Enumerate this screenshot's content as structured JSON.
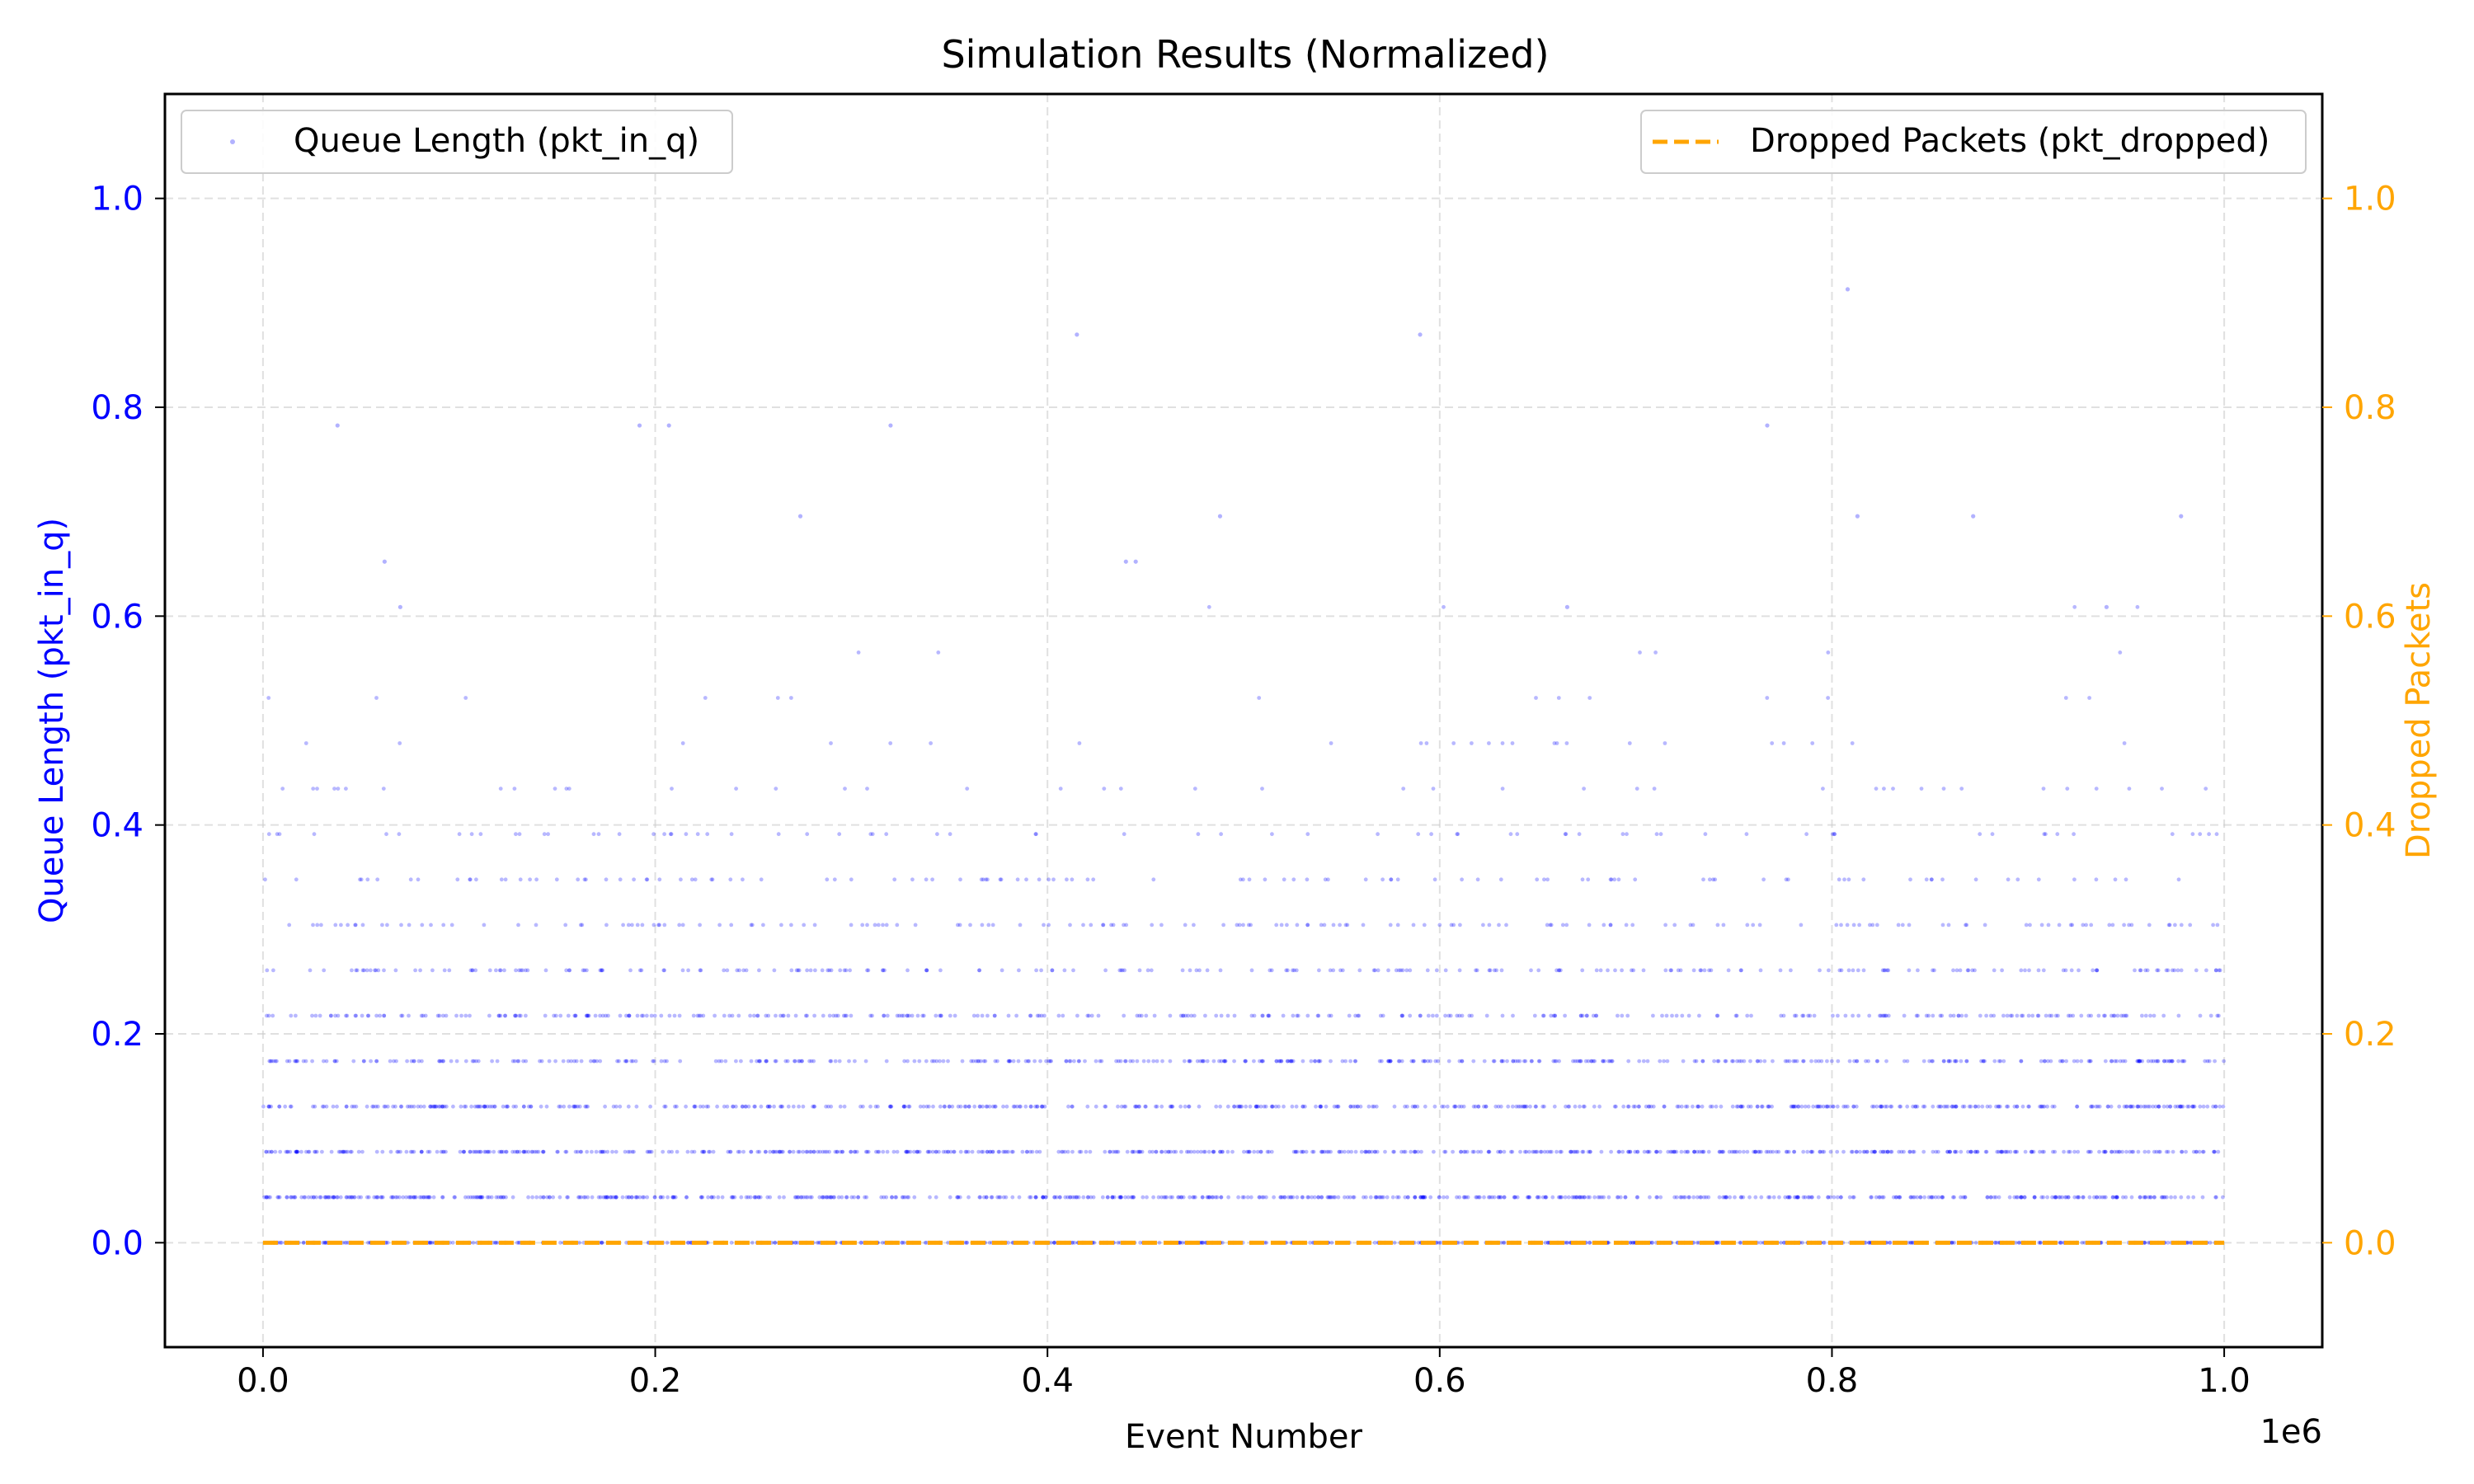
{
  "chart_data": {
    "type": "scatter",
    "title": "Simulation Results (Normalized)",
    "xlabel": "Event Number",
    "x_offset_label": "1e6",
    "x_scale": 1000000,
    "xlim": [
      -50000,
      1050000
    ],
    "x_ticks": [
      0,
      200000,
      400000,
      600000,
      800000,
      1000000
    ],
    "x_tick_labels": [
      "0.0",
      "0.2",
      "0.4",
      "0.6",
      "0.8",
      "1.0"
    ],
    "ylabel_left": "Queue Length (pkt_in_q)",
    "ylabel_right": "Dropped Packets",
    "ylim": [
      -0.1,
      1.1
    ],
    "y_ticks": [
      0.0,
      0.2,
      0.4,
      0.6,
      0.8,
      1.0
    ],
    "y_tick_labels": [
      "0.0",
      "0.2",
      "0.4",
      "0.6",
      "0.8",
      "1.0"
    ],
    "grid": true,
    "colors": {
      "queue": "#0000ff",
      "dropped": "#ffa500",
      "left_axis": "#0000ff",
      "right_axis": "#ffa500",
      "grid": "#cccccc"
    },
    "legend": [
      {
        "label": "Queue Length (pkt_in_q)",
        "placement": "upper left"
      },
      {
        "label": "Dropped Packets (pkt_dropped)",
        "placement": "upper right"
      }
    ],
    "series": [
      {
        "name": "Queue Length (pkt_in_q)",
        "kind": "scatter",
        "level_step": 0.0435,
        "levels": [
          {
            "y": 0.0,
            "density": 1.0
          },
          {
            "y": 0.0435,
            "density": 0.97
          },
          {
            "y": 0.087,
            "density": 0.9
          },
          {
            "y": 0.1304,
            "density": 0.78
          },
          {
            "y": 0.1739,
            "density": 0.62
          },
          {
            "y": 0.2174,
            "density": 0.48
          },
          {
            "y": 0.2609,
            "density": 0.34
          },
          {
            "y": 0.3043,
            "density": 0.24
          },
          {
            "y": 0.3478,
            "density": 0.16
          },
          {
            "y": 0.3913,
            "density": 0.1
          },
          {
            "y": 0.4348,
            "density": 0.06
          },
          {
            "y": 0.4783,
            "density": 0.035
          },
          {
            "y": 0.5217,
            "density": 0.02
          },
          {
            "y": 0.5652,
            "density": 0.008
          },
          {
            "y": 0.6087,
            "density": 0.006
          }
        ],
        "outliers": [
          {
            "x": 38000,
            "y": 0.7826
          },
          {
            "x": 62000,
            "y": 0.6522
          },
          {
            "x": 70000,
            "y": 0.6087
          },
          {
            "x": 192000,
            "y": 0.7826
          },
          {
            "x": 207000,
            "y": 0.7826
          },
          {
            "x": 274000,
            "y": 0.6957
          },
          {
            "x": 320000,
            "y": 0.7826
          },
          {
            "x": 415000,
            "y": 0.8696
          },
          {
            "x": 440000,
            "y": 0.6522
          },
          {
            "x": 445000,
            "y": 0.6522
          },
          {
            "x": 488000,
            "y": 0.6957
          },
          {
            "x": 590000,
            "y": 0.8696
          },
          {
            "x": 665000,
            "y": 0.6087
          },
          {
            "x": 767000,
            "y": 0.7826
          },
          {
            "x": 808000,
            "y": 0.913
          },
          {
            "x": 813000,
            "y": 0.6957
          },
          {
            "x": 872000,
            "y": 0.6957
          },
          {
            "x": 940000,
            "y": 0.6087
          },
          {
            "x": 978000,
            "y": 0.6957
          }
        ]
      },
      {
        "name": "Dropped Packets (pkt_dropped)",
        "kind": "line",
        "style": "dashed",
        "x": [
          0,
          1000000
        ],
        "values": [
          0.0,
          0.0
        ]
      }
    ]
  }
}
